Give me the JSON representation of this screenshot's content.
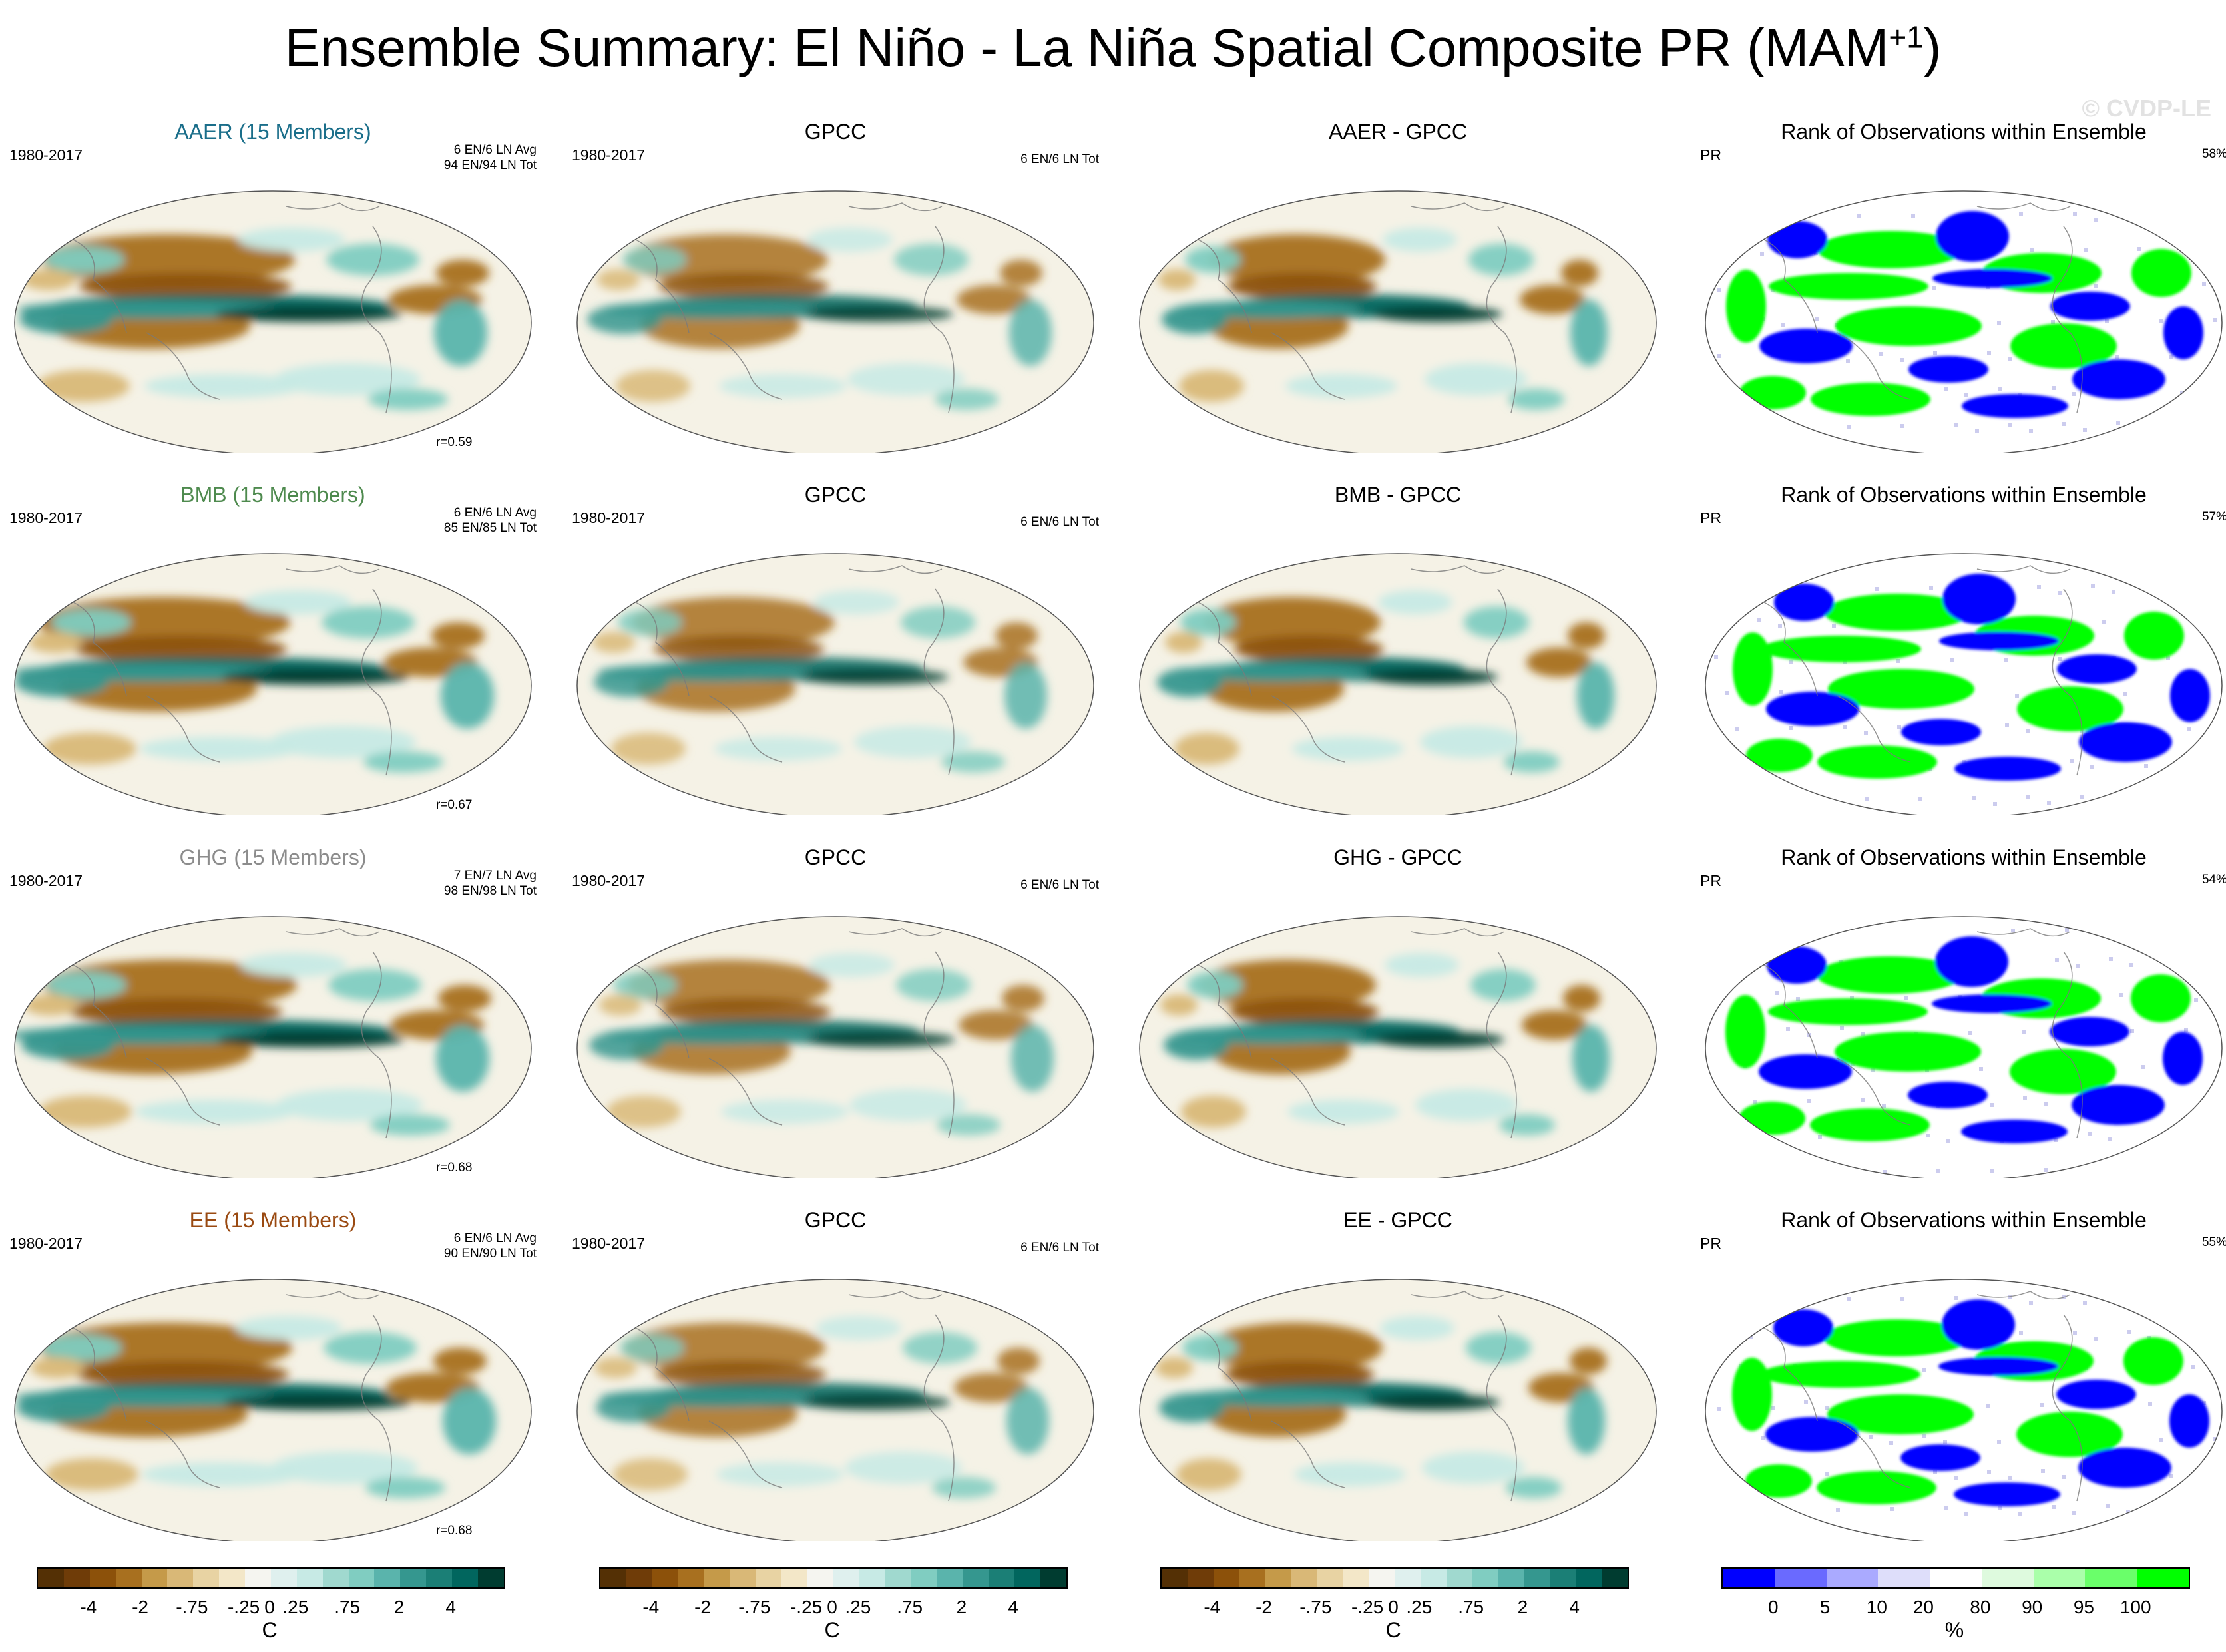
{
  "page": {
    "title_main": "Ensemble Summary: El Niño - La Niña Spatial Composite PR (MAM",
    "title_sup": "+1",
    "title_close": ")",
    "watermark": "© CVDP-LE"
  },
  "chart_data": {
    "type": "heatmap",
    "map_projection": "Robinson",
    "rows": [
      {
        "ensemble": {
          "title": "AAER (15 Members)",
          "title_color": "#1a6e8a",
          "period": "1980-2017",
          "avg": "6 EN/6 LN Avg",
          "tot": "94 EN/94 LN Tot",
          "correlation": "r=0.59"
        },
        "obs": {
          "title": "GPCC",
          "period": "1980-2017",
          "tot": "6 EN/6 LN Tot"
        },
        "diff": {
          "title": "AAER - GPCC"
        },
        "rank": {
          "title": "Rank of Observations within Ensemble",
          "variable": "PR",
          "percent": "58%"
        }
      },
      {
        "ensemble": {
          "title": "BMB (15 Members)",
          "title_color": "#4e8a4e",
          "period": "1980-2017",
          "avg": "6 EN/6 LN Avg",
          "tot": "85 EN/85 LN Tot",
          "correlation": "r=0.67"
        },
        "obs": {
          "title": "GPCC",
          "period": "1980-2017",
          "tot": "6 EN/6 LN Tot"
        },
        "diff": {
          "title": "BMB - GPCC"
        },
        "rank": {
          "title": "Rank of Observations within Ensemble",
          "variable": "PR",
          "percent": "57%"
        }
      },
      {
        "ensemble": {
          "title": "GHG (15 Members)",
          "title_color": "#8c8c8c",
          "period": "1980-2017",
          "avg": "7 EN/7 LN Avg",
          "tot": "98 EN/98 LN Tot",
          "correlation": "r=0.68"
        },
        "obs": {
          "title": "GPCC",
          "period": "1980-2017",
          "tot": "6 EN/6 LN Tot"
        },
        "diff": {
          "title": "GHG - GPCC"
        },
        "rank": {
          "title": "Rank of Observations within Ensemble",
          "variable": "PR",
          "percent": "54%"
        }
      },
      {
        "ensemble": {
          "title": "EE (15 Members)",
          "title_color": "#9a4a12",
          "period": "1980-2017",
          "avg": "6 EN/6 LN Avg",
          "tot": "90 EN/90 LN Tot",
          "correlation": "r=0.68"
        },
        "obs": {
          "title": "GPCC",
          "period": "1980-2017",
          "tot": "6 EN/6 LN Tot"
        },
        "diff": {
          "title": "EE - GPCC"
        },
        "rank": {
          "title": "Rank of Observations within Ensemble",
          "variable": "PR",
          "percent": "55%"
        }
      }
    ],
    "composite_colorbar": {
      "unit": "C",
      "tick_labels": [
        "-4",
        "-2",
        "-.75",
        "-.25",
        "0",
        ".25",
        ".75",
        "2",
        "4"
      ],
      "colors": [
        "#543005",
        "#6f3c08",
        "#8c510a",
        "#a8701f",
        "#c59a49",
        "#d9b877",
        "#e8d3a3",
        "#f3e7c8",
        "#f5f5f0",
        "#dff0ee",
        "#c7eae5",
        "#a0d9cf",
        "#80cdc1",
        "#5ab4ac",
        "#35978f",
        "#1b7f76",
        "#01665e",
        "#003c30"
      ]
    },
    "rank_colorbar": {
      "unit": "%",
      "tick_labels": [
        "0",
        "5",
        "10",
        "20",
        "80",
        "90",
        "95",
        "100"
      ],
      "colors": [
        "#0000ff",
        "#6a6aff",
        "#aaaaff",
        "#dedefa",
        "#ffffff",
        "#defade",
        "#aaffaa",
        "#6aff6a",
        "#00ff00"
      ]
    }
  }
}
